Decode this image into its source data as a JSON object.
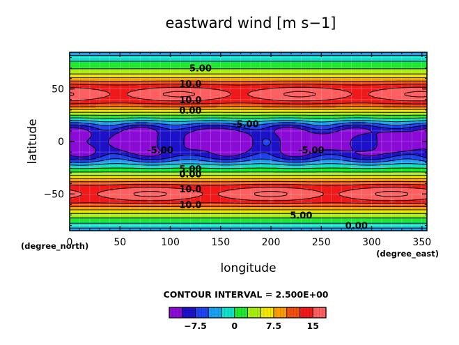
{
  "chart_data": {
    "type": "heatmap",
    "title": "eastward wind [m s−1]",
    "xlabel": "longitude",
    "ylabel": "latitude",
    "x_unit_label": "(degree_east)",
    "y_unit_label": "(degree_north)",
    "xlim": [
      0,
      355
    ],
    "ylim": [
      -85,
      85
    ],
    "x_ticks": [
      0,
      50,
      100,
      150,
      200,
      250,
      300,
      350
    ],
    "y_ticks": [
      -50,
      0,
      50
    ],
    "x_tick_labels": [
      "0",
      "50",
      "100",
      "150",
      "200",
      "250",
      "300",
      "350"
    ],
    "y_tick_labels": [
      "−50",
      "0",
      "50"
    ],
    "contour_interval_text": "CONTOUR INTERVAL = 2.500E+00",
    "contour_interval": 2.5,
    "contour_labels": [
      {
        "text": "5.00",
        "lon": 130,
        "lat": 70
      },
      {
        "text": "10.0",
        "lon": 120,
        "lat": 55
      },
      {
        "text": "10.0",
        "lon": 120,
        "lat": 40
      },
      {
        "text": "0.00",
        "lon": 120,
        "lat": 30
      },
      {
        "text": "-5.00",
        "lon": 175,
        "lat": 17
      },
      {
        "text": "-5.00",
        "lon": 90,
        "lat": -8
      },
      {
        "text": "-5.00",
        "lon": 240,
        "lat": -8
      },
      {
        "text": "5.00",
        "lon": 120,
        "lat": -26
      },
      {
        "text": "0.00",
        "lon": 120,
        "lat": -31
      },
      {
        "text": "10.0",
        "lon": 120,
        "lat": -45
      },
      {
        "text": "10.0",
        "lon": 120,
        "lat": -60
      },
      {
        "text": "5.00",
        "lon": 230,
        "lat": -70
      },
      {
        "text": "0.00",
        "lon": 285,
        "lat": -80
      }
    ],
    "colorbar": {
      "levels": [
        -10,
        -7.5,
        -5,
        -2.5,
        0,
        2.5,
        5,
        7.5,
        10,
        12.5,
        15
      ],
      "tick_labels": [
        "−7.5",
        "0",
        "7.5",
        "15"
      ],
      "tick_values": [
        -7.5,
        0,
        7.5,
        15
      ],
      "colors": [
        "#8a0ad6",
        "#1c10c8",
        "#1f42f0",
        "#1aa0f0",
        "#10e0c8",
        "#20e830",
        "#a8ee10",
        "#f0e800",
        "#fb9c00",
        "#f24e10",
        "#f01818",
        "#ff5f5f"
      ]
    },
    "grid": true,
    "features": {
      "nh_jet": {
        "lat": 45,
        "max_value": 15
      },
      "sh_jet": {
        "lat": -50,
        "max_value": 15
      },
      "equatorial_easterlies": {
        "lat": 0,
        "min_value": -10
      }
    }
  }
}
